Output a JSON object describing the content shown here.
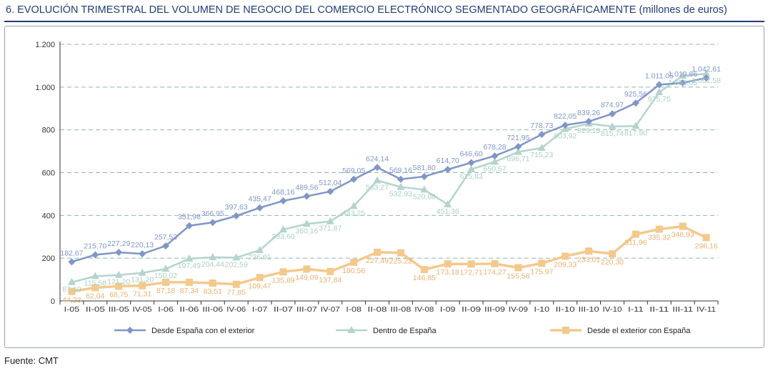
{
  "title": {
    "main": "6.  EVOLUCIÓN TRIMESTRAL DEL VOLUMEN DE NEGOCIO DEL COMERCIO ELECTRÓNICO SEGMENTADO GEOGRÁFICAMENTE",
    "unit": "(millones de euros)"
  },
  "source": "Fuente: CMT",
  "chart_data": {
    "type": "line",
    "title": "",
    "xlabel": "",
    "ylabel": "",
    "ylim": [
      0,
      1200
    ],
    "yticks": [
      0,
      200,
      400,
      600,
      800,
      1000,
      1200
    ],
    "ytick_labels": [
      "0",
      "200",
      "400",
      "600",
      "800",
      "1.000",
      "1.200"
    ],
    "grid": "horizontal dashed",
    "legend_position": "bottom",
    "categories": [
      "I-05",
      "II-05",
      "III-05",
      "IV-05",
      "I-06",
      "II-06",
      "III-06",
      "IV-06",
      "I-07",
      "II-07",
      "III-07",
      "IV-07",
      "I-08",
      "II-08",
      "III-08",
      "IV-08",
      "I-09",
      "II-09",
      "III-09",
      "IV-09",
      "I-10",
      "II-10",
      "III-10",
      "IV-10",
      "I-11",
      "II-11",
      "III-11",
      "IV-11"
    ],
    "series": [
      {
        "name": "Desde España con el exterior",
        "color": "#8096c8",
        "label_color": "#8096c8",
        "marker": "diamond",
        "values": [
          182.67,
          215.7,
          227.29,
          220.13,
          257.53,
          351.98,
          366.95,
          397.63,
          435.47,
          468.16,
          489.56,
          512.04,
          569.05,
          624.14,
          569.16,
          581.8,
          614.7,
          646.6,
          678.28,
          721.95,
          778.73,
          822.05,
          839.26,
          874.97,
          925.56,
          1011.05,
          1019.86,
          1042.61
        ],
        "labels": [
          "182,67",
          "215,70",
          "227,29",
          "220,13",
          "257,53",
          "351,98",
          "366,95",
          "397,63",
          "435,47",
          "468,16",
          "489,56",
          "512,04",
          "569,05",
          "624,14",
          "569,16",
          "581,80",
          "614,70",
          "646,60",
          "678,28",
          "721,95",
          "778,73",
          "822,05",
          "839,26",
          "874,97",
          "925,56",
          "1.011,05",
          "1.019,86",
          "1.042,61"
        ]
      },
      {
        "name": "Dentro de España",
        "color": "#b4d4cd",
        "label_color": "#a8cfc6",
        "marker": "triangle",
        "values": [
          87.6,
          115.58,
          121.2,
          131.2,
          150.02,
          197.49,
          204.44,
          202.59,
          236.91,
          333.6,
          360.16,
          371.87,
          443.25,
          563.27,
          532.93,
          520.08,
          451.36,
          615.83,
          650.57,
          696.71,
          715.23,
          803.92,
          829.13,
          815.74,
          817.9,
          975.75,
          1053.05,
          1062.58
        ],
        "labels": [
          "87,60",
          "115,58",
          "121,20",
          "131,20",
          "150,02",
          "197,49",
          "204,44",
          "202,59",
          "236,91",
          "333,60",
          "360,16",
          "371,87",
          "443,25",
          "563,27",
          "532,93",
          "520,08",
          "451,36",
          "615,83",
          "650,57",
          "696,71",
          "715,23",
          "803,92",
          "829,13",
          "815,74",
          "817,90",
          "975,75",
          "1.053,05",
          "1.062,58"
        ]
      },
      {
        "name": "Desde el exterior con España",
        "color": "#f4c98c",
        "label_color": "#e8b070",
        "marker": "square",
        "values": [
          44.23,
          62.04,
          68.75,
          71.31,
          87.18,
          87.34,
          83.51,
          77.85,
          109.47,
          135.89,
          149.09,
          137.84,
          180.56,
          227.49,
          225.22,
          146.85,
          173.18,
          172.71,
          174.27,
          155.58,
          175.97,
          209.33,
          233.01,
          220.3,
          311.96,
          335.32,
          348.93,
          296.16
        ],
        "labels": [
          "44,23",
          "62,04",
          "68,75",
          "71,31",
          "87,18",
          "87,34",
          "83,51",
          "77,85",
          "109,47",
          "135,89",
          "149,09",
          "137,84",
          "180,56",
          "227,49",
          "225,22",
          "146,85",
          "173,18",
          "172,71",
          "174,27",
          "155,58",
          "175,97",
          "209,33",
          "233,01",
          "220,30",
          "311,96",
          "335,32",
          "348,93",
          "296,16"
        ]
      }
    ]
  }
}
